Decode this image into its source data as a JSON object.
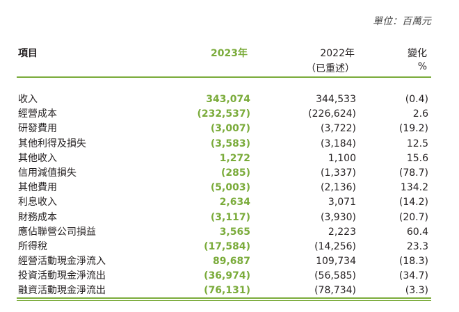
{
  "unit_note": "單位：百萬元",
  "header": {
    "item": "項目",
    "year_2023": "2023年",
    "year_2022": "2022年",
    "year_2022_note": "（已重述）",
    "change": "變化",
    "change_unit": "%"
  },
  "rows": [
    {
      "label": "收入",
      "v2023": "343,074",
      "v2022": "344,533",
      "change": "(0.4)"
    },
    {
      "label": "經營成本",
      "v2023": "(232,537)",
      "v2022": "(226,624)",
      "change": "2.6"
    },
    {
      "label": "研發費用",
      "v2023": "(3,007)",
      "v2022": "(3,722)",
      "change": "(19.2)"
    },
    {
      "label": "其他利得及損失",
      "v2023": "(3,583)",
      "v2022": "(3,184)",
      "change": "12.5"
    },
    {
      "label": "其他收入",
      "v2023": "1,272",
      "v2022": "1,100",
      "change": "15.6"
    },
    {
      "label": "信用減值損失",
      "v2023": "(285)",
      "v2022": "(1,337)",
      "change": "(78.7)"
    },
    {
      "label": "其他費用",
      "v2023": "(5,003)",
      "v2022": "(2,136)",
      "change": "134.2"
    },
    {
      "label": "利息收入",
      "v2023": "2,634",
      "v2022": "3,071",
      "change": "(14.2)"
    },
    {
      "label": "財務成本",
      "v2023": "(3,117)",
      "v2022": "(3,930)",
      "change": "(20.7)"
    },
    {
      "label": "應佔聯營公司損益",
      "v2023": "3,565",
      "v2022": "2,223",
      "change": "60.4"
    },
    {
      "label": "所得稅",
      "v2023": "(17,584)",
      "v2022": "(14,256)",
      "change": "23.3"
    },
    {
      "label": "經營活動現金淨流入",
      "v2023": "89,687",
      "v2022": "109,734",
      "change": "(18.3)"
    },
    {
      "label": "投資活動現金淨流出",
      "v2023": "(36,974)",
      "v2022": "(56,585)",
      "change": "(34.7)"
    },
    {
      "label": "融資活動現金淨流出",
      "v2023": "(76,131)",
      "v2022": "(78,734)",
      "change": "(3.3)"
    }
  ]
}
